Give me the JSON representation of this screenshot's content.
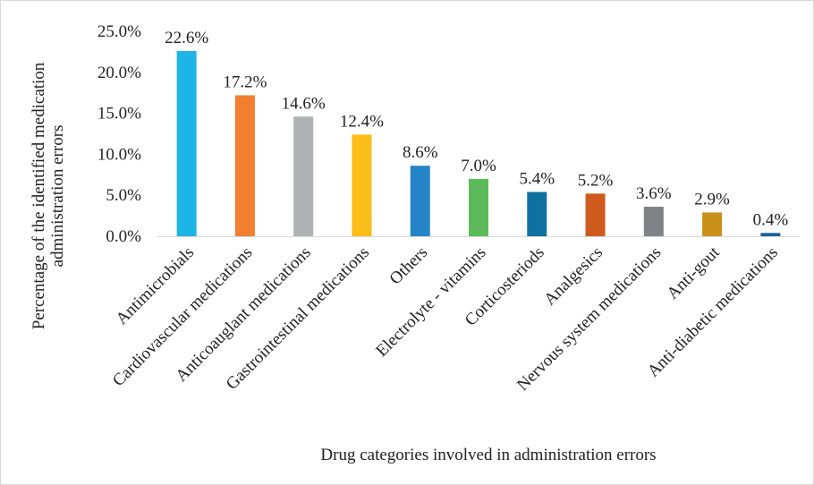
{
  "chart_data": {
    "type": "bar",
    "title": "",
    "xlabel": "Drug categories involved in administration errors",
    "ylabel_lines": [
      "Percentage of the identified medication",
      "administration errors"
    ],
    "categories": [
      "Antimicrobials",
      "Cardiovascular medications",
      "Anticoauglant medications",
      "Gastrointestinal medications",
      "Others",
      "Electrolyte - vitamins",
      "Corticosteriods",
      "Analgesics",
      "Nervous system medications",
      "Anti-gout",
      "Anti-diabetic medications"
    ],
    "values": [
      22.6,
      17.2,
      14.6,
      12.4,
      8.6,
      7.0,
      5.4,
      5.2,
      3.6,
      2.9,
      0.4
    ],
    "data_labels": [
      "22.6%",
      "17.2%",
      "14.6%",
      "12.4%",
      "8.6%",
      "7.0%",
      "5.4%",
      "5.2%",
      "3.6%",
      "2.9%",
      "0.4%"
    ],
    "colors": [
      "#1fb4e6",
      "#f07f2f",
      "#b0b1b4",
      "#fbbd17",
      "#2584c8",
      "#5cba5a",
      "#0f71a0",
      "#cf5a1d",
      "#808285",
      "#c9901a",
      "#1a5f9b"
    ],
    "ylim": [
      0,
      25
    ],
    "yticks": [
      0,
      5,
      10,
      15,
      20,
      25
    ],
    "ytick_labels": [
      "0.0%",
      "5.0%",
      "10.0%",
      "15.0%",
      "20.0%",
      "25.0%"
    ],
    "grid": false,
    "legend": "none"
  }
}
